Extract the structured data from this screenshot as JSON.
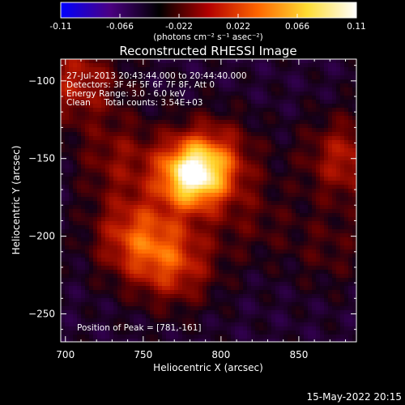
{
  "chart_data": {
    "type": "heatmap",
    "title": "Reconstructed RHESSI Image",
    "xlabel": "Heliocentric X (arcsec)",
    "ylabel": "Heliocentric Y (arcsec)",
    "xlim": [
      697,
      887
    ],
    "ylim": [
      -268,
      -86
    ],
    "x_ticks": [
      700,
      750,
      800,
      850
    ],
    "y_ticks": [
      -100,
      -150,
      -200,
      -250
    ],
    "colorbar": {
      "range": [
        -0.11,
        0.11
      ],
      "tick_values": [
        -0.11,
        -0.066,
        -0.022,
        0.022,
        0.066,
        0.11
      ],
      "tick_labels": [
        "-0.11",
        "-0.066",
        "-0.022",
        "0.022",
        "0.066",
        "0.11"
      ],
      "unit_label": "(photons cm⁻² s⁻¹ asec⁻²)",
      "colors": [
        "#0000ff",
        "#4b0082",
        "#000000",
        "#b30000",
        "#ff6600",
        "#ffdd33",
        "#ffffff"
      ]
    },
    "info_lines": [
      "27-Jul-2013 20:43:44.000 to 20:44:40.000",
      "Detectors: 3F 4F 5F 6F 7F 8F, Att 0",
      "Energy Range: 3.0 - 6.0 keV",
      "Clean     Total counts: 3.54E+03"
    ],
    "peak_label": "Position of Peak = [781,-161]",
    "peak": [
      781,
      -161
    ],
    "sources": [
      {
        "x": 781,
        "y": -161,
        "amplitude": 0.11
      },
      {
        "x": 795,
        "y": -151,
        "amplitude": 0.055
      },
      {
        "x": 745,
        "y": -200,
        "amplitude": 0.06
      },
      {
        "x": 770,
        "y": -218,
        "amplitude": 0.055
      },
      {
        "x": 735,
        "y": -150,
        "amplitude": 0.035
      },
      {
        "x": 707,
        "y": -100,
        "amplitude": 0.05
      },
      {
        "x": 880,
        "y": -150,
        "amplitude": 0.05
      },
      {
        "x": 870,
        "y": -208,
        "amplitude": 0.02
      },
      {
        "x": 820,
        "y": -190,
        "amplitude": 0.02
      }
    ],
    "background": -0.03
  },
  "footer": {
    "date": "15-May-2022 20:15"
  }
}
